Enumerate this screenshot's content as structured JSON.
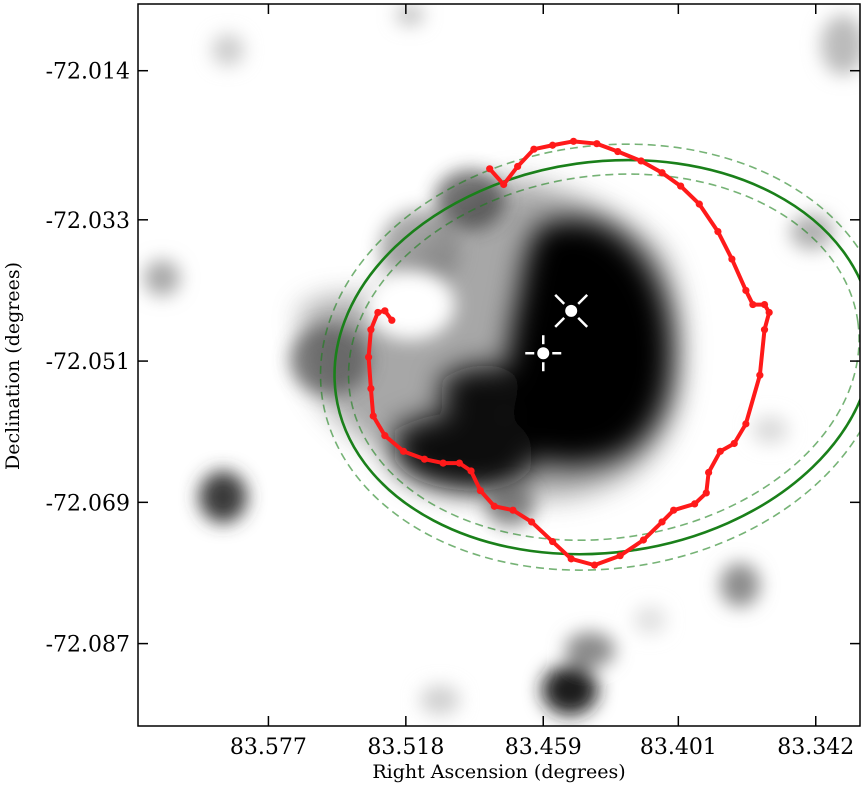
{
  "chart_data": {
    "type": "image",
    "xlabel": "Right Ascension (degrees)",
    "ylabel": "Declination (degrees)",
    "x_ticks": [
      83.577,
      83.518,
      83.459,
      83.401,
      83.342
    ],
    "x_tick_labels": [
      "83.577",
      "83.518",
      "83.459",
      "83.401",
      "83.342"
    ],
    "y_ticks": [
      -72.014,
      -72.033,
      -72.051,
      -72.069,
      -72.087
    ],
    "y_tick_labels": [
      "-72.014",
      "-72.033",
      "-72.051",
      "-72.069",
      "-72.087"
    ],
    "xlim": [
      83.633,
      83.323
    ],
    "ylim": [
      -72.0975,
      -72.0055
    ],
    "colormap": "grayscale",
    "colors": {
      "ellipse": "#1a801a",
      "contour": "#ff1a1a",
      "markers": "#ffffff"
    },
    "ellipse": {
      "center_ra": 83.433,
      "center_dec": -72.0505,
      "semi_major_ra_deg": 0.101,
      "semi_minor_dec_deg": 0.0262,
      "rotation_deg": -8
    },
    "markers": [
      {
        "symbol": "x-cross",
        "ra": 83.447,
        "dec": -72.0446
      },
      {
        "symbol": "plus-cross",
        "ra": 83.459,
        "dec": -72.05
      }
    ],
    "contour_points": [
      [
        83.482,
        -72.0265
      ],
      [
        83.476,
        -72.0285
      ],
      [
        83.47,
        -72.0262
      ],
      [
        83.463,
        -72.024
      ],
      [
        83.455,
        -72.0235
      ],
      [
        83.446,
        -72.023
      ],
      [
        83.436,
        -72.0233
      ],
      [
        83.427,
        -72.0243
      ],
      [
        83.417,
        -72.0255
      ],
      [
        83.408,
        -72.027
      ],
      [
        83.4,
        -72.0287
      ],
      [
        83.392,
        -72.031
      ],
      [
        83.384,
        -72.0345
      ],
      [
        83.378,
        -72.038
      ],
      [
        83.372,
        -72.042
      ],
      [
        83.369,
        -72.0438
      ],
      [
        83.364,
        -72.0438
      ],
      [
        83.362,
        -72.0448
      ],
      [
        83.364,
        -72.047
      ],
      [
        83.366,
        -72.0528
      ],
      [
        83.372,
        -72.059
      ],
      [
        83.377,
        -72.0615
      ],
      [
        83.383,
        -72.0625
      ],
      [
        83.388,
        -72.0652
      ],
      [
        83.389,
        -72.0678
      ],
      [
        83.394,
        -72.0692
      ],
      [
        83.403,
        -72.07
      ],
      [
        83.408,
        -72.0715
      ],
      [
        83.416,
        -72.0738
      ],
      [
        83.426,
        -72.0758
      ],
      [
        83.437,
        -72.077
      ],
      [
        83.447,
        -72.0762
      ],
      [
        83.455,
        -72.074
      ],
      [
        83.464,
        -72.0715
      ],
      [
        83.472,
        -72.07
      ],
      [
        83.48,
        -72.0695
      ],
      [
        83.486,
        -72.0675
      ],
      [
        83.49,
        -72.065
      ],
      [
        83.495,
        -72.064
      ],
      [
        83.502,
        -72.064
      ],
      [
        83.51,
        -72.0635
      ],
      [
        83.519,
        -72.0625
      ],
      [
        83.527,
        -72.0605
      ],
      [
        83.532,
        -72.058
      ],
      [
        83.533,
        -72.0545
      ],
      [
        83.534,
        -72.0505
      ],
      [
        83.533,
        -72.047
      ],
      [
        83.53,
        -72.0448
      ],
      [
        83.527,
        -72.0446
      ],
      [
        83.524,
        -72.0458
      ]
    ]
  }
}
